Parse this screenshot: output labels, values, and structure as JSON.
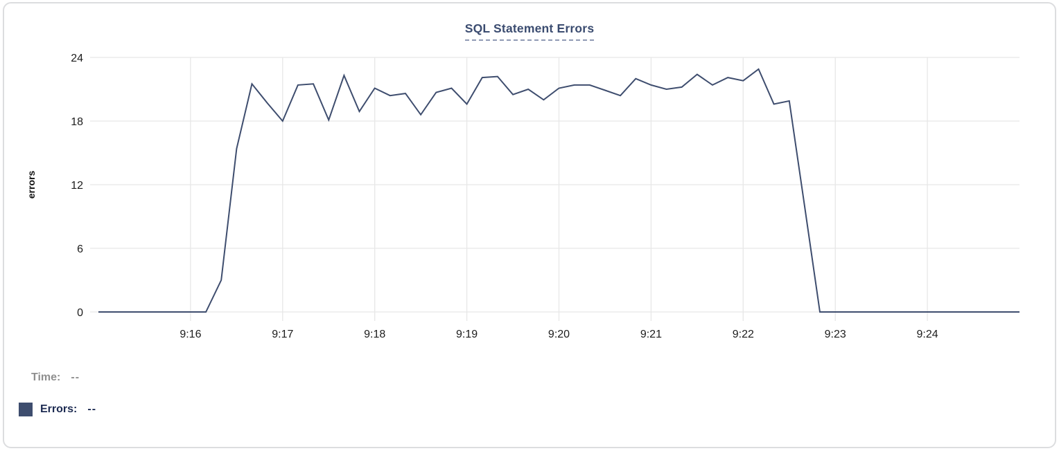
{
  "panel": {
    "title": "SQL Statement Errors"
  },
  "chart_data": {
    "type": "line",
    "title": "SQL Statement Errors",
    "xlabel": "",
    "ylabel": "errors",
    "ylim": [
      0,
      24
    ],
    "y_ticks": [
      0,
      6,
      12,
      18,
      24
    ],
    "grid": true,
    "legend_position": "bottom-left",
    "x_axis": {
      "unit": "time-of-day",
      "range_seconds": [
        0,
        600
      ],
      "start_time": "9:15",
      "end_time": "9:25"
    },
    "x_ticks": [
      {
        "seconds": 60,
        "label": "9:16"
      },
      {
        "seconds": 120,
        "label": "9:17"
      },
      {
        "seconds": 180,
        "label": "9:18"
      },
      {
        "seconds": 240,
        "label": "9:19"
      },
      {
        "seconds": 300,
        "label": "9:20"
      },
      {
        "seconds": 360,
        "label": "9:21"
      },
      {
        "seconds": 420,
        "label": "9:22"
      },
      {
        "seconds": 480,
        "label": "9:23"
      },
      {
        "seconds": 540,
        "label": "9:24"
      }
    ],
    "x_start_seconds": 0,
    "x_interval_seconds": 10,
    "series": [
      {
        "name": "Errors",
        "color": "#3e4d6e",
        "values": [
          0,
          0,
          0,
          0,
          0,
          0,
          0,
          0,
          3,
          15.4,
          21.5,
          19.7,
          18,
          21.4,
          21.5,
          18.1,
          22.3,
          18.9,
          21.1,
          20.4,
          20.6,
          18.6,
          20.7,
          21.1,
          19.6,
          22.1,
          22.2,
          20.5,
          21,
          20,
          21.1,
          21.4,
          21.4,
          20.9,
          20.4,
          22,
          21.4,
          21,
          21.2,
          22.4,
          21.4,
          22.1,
          21.8,
          22.9,
          19.6,
          19.9,
          10,
          0,
          0,
          0,
          0,
          0,
          0,
          0,
          0,
          0,
          0,
          0,
          0,
          0,
          0
        ]
      }
    ]
  },
  "legend": {
    "time_label": "Time:",
    "time_value": "--",
    "series_label": "Errors:",
    "series_value": "--",
    "swatch_color": "#3e4d6e"
  },
  "colors": {
    "line": "#3e4d6e",
    "title": "#3b4c70",
    "title_underline": "#8e99b3",
    "grid": "#e7e7e7",
    "axis_text": "#1c1c1c",
    "legend_muted": "#8f8f8f",
    "legend_text": "#1d2b52",
    "panel_border": "#dcdddf"
  }
}
